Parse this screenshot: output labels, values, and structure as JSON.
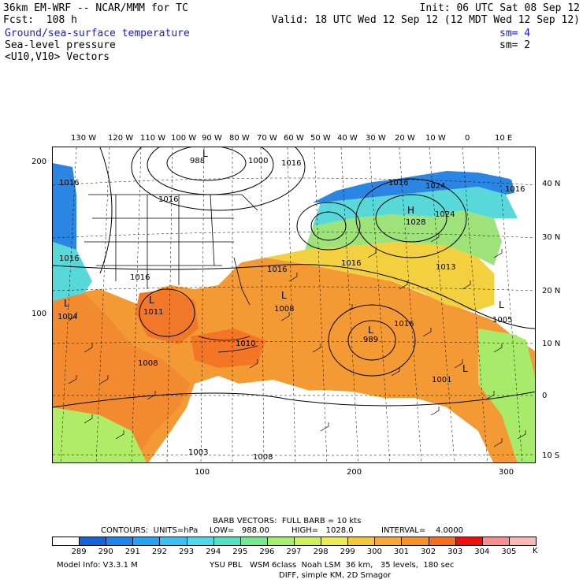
{
  "header": {
    "line1_left": "36km EM-WRF -- NCAR/MMM for TC",
    "line1_right": "Init: 06 UTC Sat 08 Sep 12",
    "line2_left": "Fcst:  108 h",
    "line2_right": "Valid: 18 UTC Wed 12 Sep 12 (12 MDT Wed 12 Sep 12)",
    "field1": "Ground/sea-surface temperature",
    "field1_sm": "sm= 4",
    "field2": "Sea-level pressure",
    "field2_sm": "sm= 2",
    "field3": "<U10,V10> Vectors"
  },
  "axes": {
    "top_lon_labels": [
      "130 W",
      "120 W",
      "110 W",
      "100 W",
      "90 W",
      "80 W",
      "70 W",
      "60 W",
      "50 W",
      "40 W",
      "30 W",
      "20 W",
      "10 W",
      "0",
      "10 E"
    ],
    "right_lat_labels": [
      "40 N",
      "30 N",
      "20 N",
      "10 N",
      "0",
      "10 S"
    ],
    "left_grid_labels": [
      "200",
      "100"
    ],
    "bottom_grid_labels": [
      "100",
      "200",
      "300"
    ]
  },
  "map_labels": {
    "pressure_values": [
      "988",
      "1000",
      "1016",
      "1016",
      "1016",
      "1024",
      "1024",
      "1028",
      "1016",
      "1016",
      "1016",
      "1016",
      "1016",
      "1013",
      "1004",
      "1011",
      "1008",
      "1008",
      "1010",
      "989",
      "1016",
      "1005",
      "1001",
      "1003",
      "1008",
      "1016"
    ],
    "lows": [
      "L",
      "L",
      "L",
      "L",
      "L",
      "L",
      "L"
    ],
    "highs": [
      "H"
    ]
  },
  "legend": {
    "barb_line": "BARB VECTORS:  FULL BARB = 10 kts",
    "contours_label": "CONTOURS:  UNITS=hPa",
    "low": "LOW=   988.00",
    "high": "HIGH=   1028.0",
    "interval": "INTERVAL=    4.0000",
    "unit": "K",
    "colorbar_values": [
      "289",
      "290",
      "291",
      "292",
      "293",
      "294",
      "295",
      "296",
      "297",
      "298",
      "299",
      "300",
      "301",
      "302",
      "303",
      "304",
      "305"
    ],
    "colorbar_colors": [
      "#ffffff",
      "#1565d8",
      "#1e86e8",
      "#2aa0f0",
      "#3cc0f0",
      "#52d8e8",
      "#58e0c0",
      "#78e890",
      "#a8ec70",
      "#d0ee60",
      "#ecea58",
      "#f2c840",
      "#f4a838",
      "#f49230",
      "#f27020",
      "#ee1010",
      "#f49090",
      "#f8b8b8"
    ]
  },
  "footer": {
    "model": "Model Info: V3.3.1 M",
    "physics": "YSU PBL   WSM 6class  Noah LSM  36 km,   35 levels,  180 sec",
    "diff": "DIFF, simple KM, 2D Smagor"
  }
}
